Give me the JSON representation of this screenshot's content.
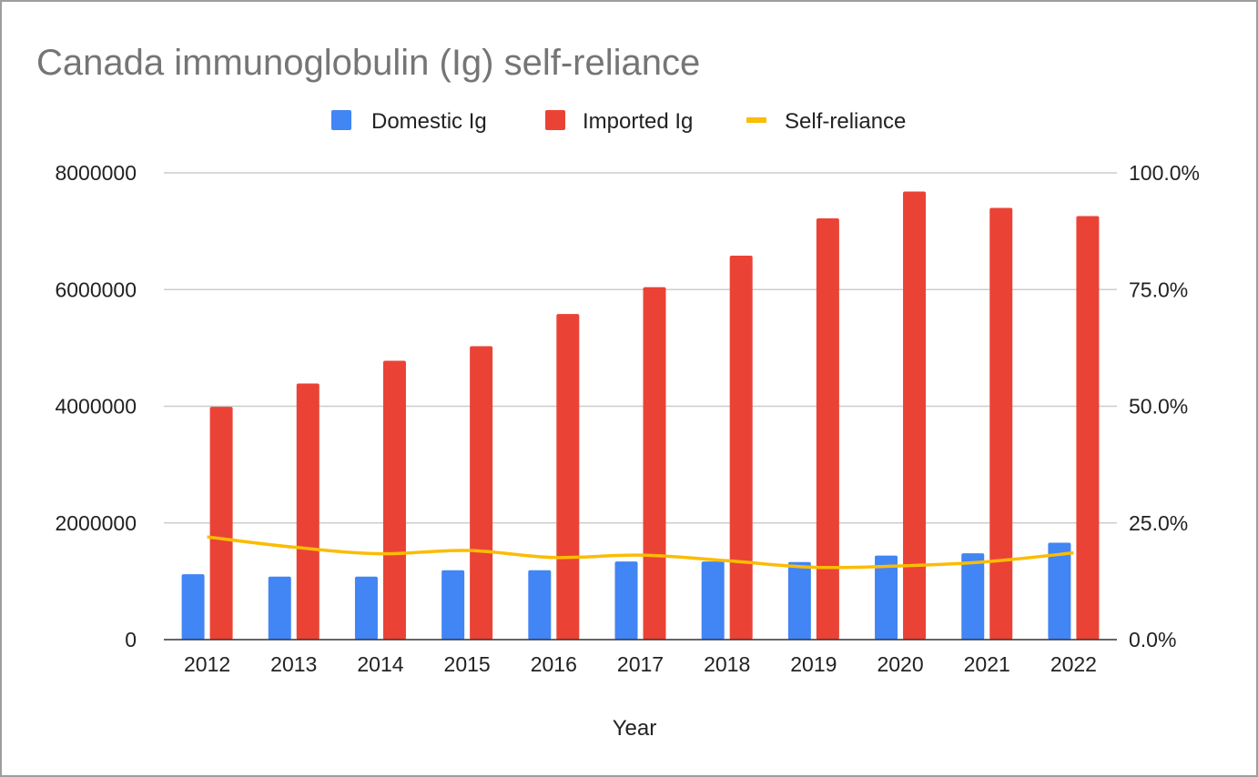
{
  "chart_data": {
    "type": "bar",
    "title": "Canada immunoglobulin (Ig) self-reliance",
    "xlabel": "Year",
    "ylabel": "",
    "ylabel_right": "",
    "categories": [
      "2012",
      "2013",
      "2014",
      "2015",
      "2016",
      "2017",
      "2018",
      "2019",
      "2020",
      "2021",
      "2022"
    ],
    "ylim": [
      0,
      8000000
    ],
    "y2lim": [
      0,
      1.0
    ],
    "yticks": [
      0,
      2000000,
      4000000,
      6000000,
      8000000
    ],
    "ytick_labels": [
      "0",
      "2000000",
      "4000000",
      "6000000",
      "8000000"
    ],
    "y2ticks": [
      0,
      0.25,
      0.5,
      0.75,
      1.0
    ],
    "y2tick_labels": [
      "0.0%",
      "25.0%",
      "50.0%",
      "75.0%",
      "100.0%"
    ],
    "grid": true,
    "legend_position": "top-center",
    "series": [
      {
        "name": "Domestic Ig",
        "kind": "bar",
        "axis": "left",
        "color": "#4285f4",
        "values": [
          1120000,
          1080000,
          1080000,
          1190000,
          1190000,
          1340000,
          1340000,
          1330000,
          1440000,
          1480000,
          1660000
        ]
      },
      {
        "name": "Imported Ig",
        "kind": "bar",
        "axis": "left",
        "color": "#ea4335",
        "values": [
          3990000,
          4390000,
          4780000,
          5030000,
          5580000,
          6040000,
          6580000,
          7220000,
          7680000,
          7400000,
          7260000
        ]
      },
      {
        "name": "Self-reliance",
        "kind": "line",
        "axis": "right",
        "color": "#fbbc04",
        "values": [
          0.22,
          0.198,
          0.184,
          0.191,
          0.176,
          0.181,
          0.169,
          0.155,
          0.158,
          0.167,
          0.186
        ]
      }
    ]
  }
}
